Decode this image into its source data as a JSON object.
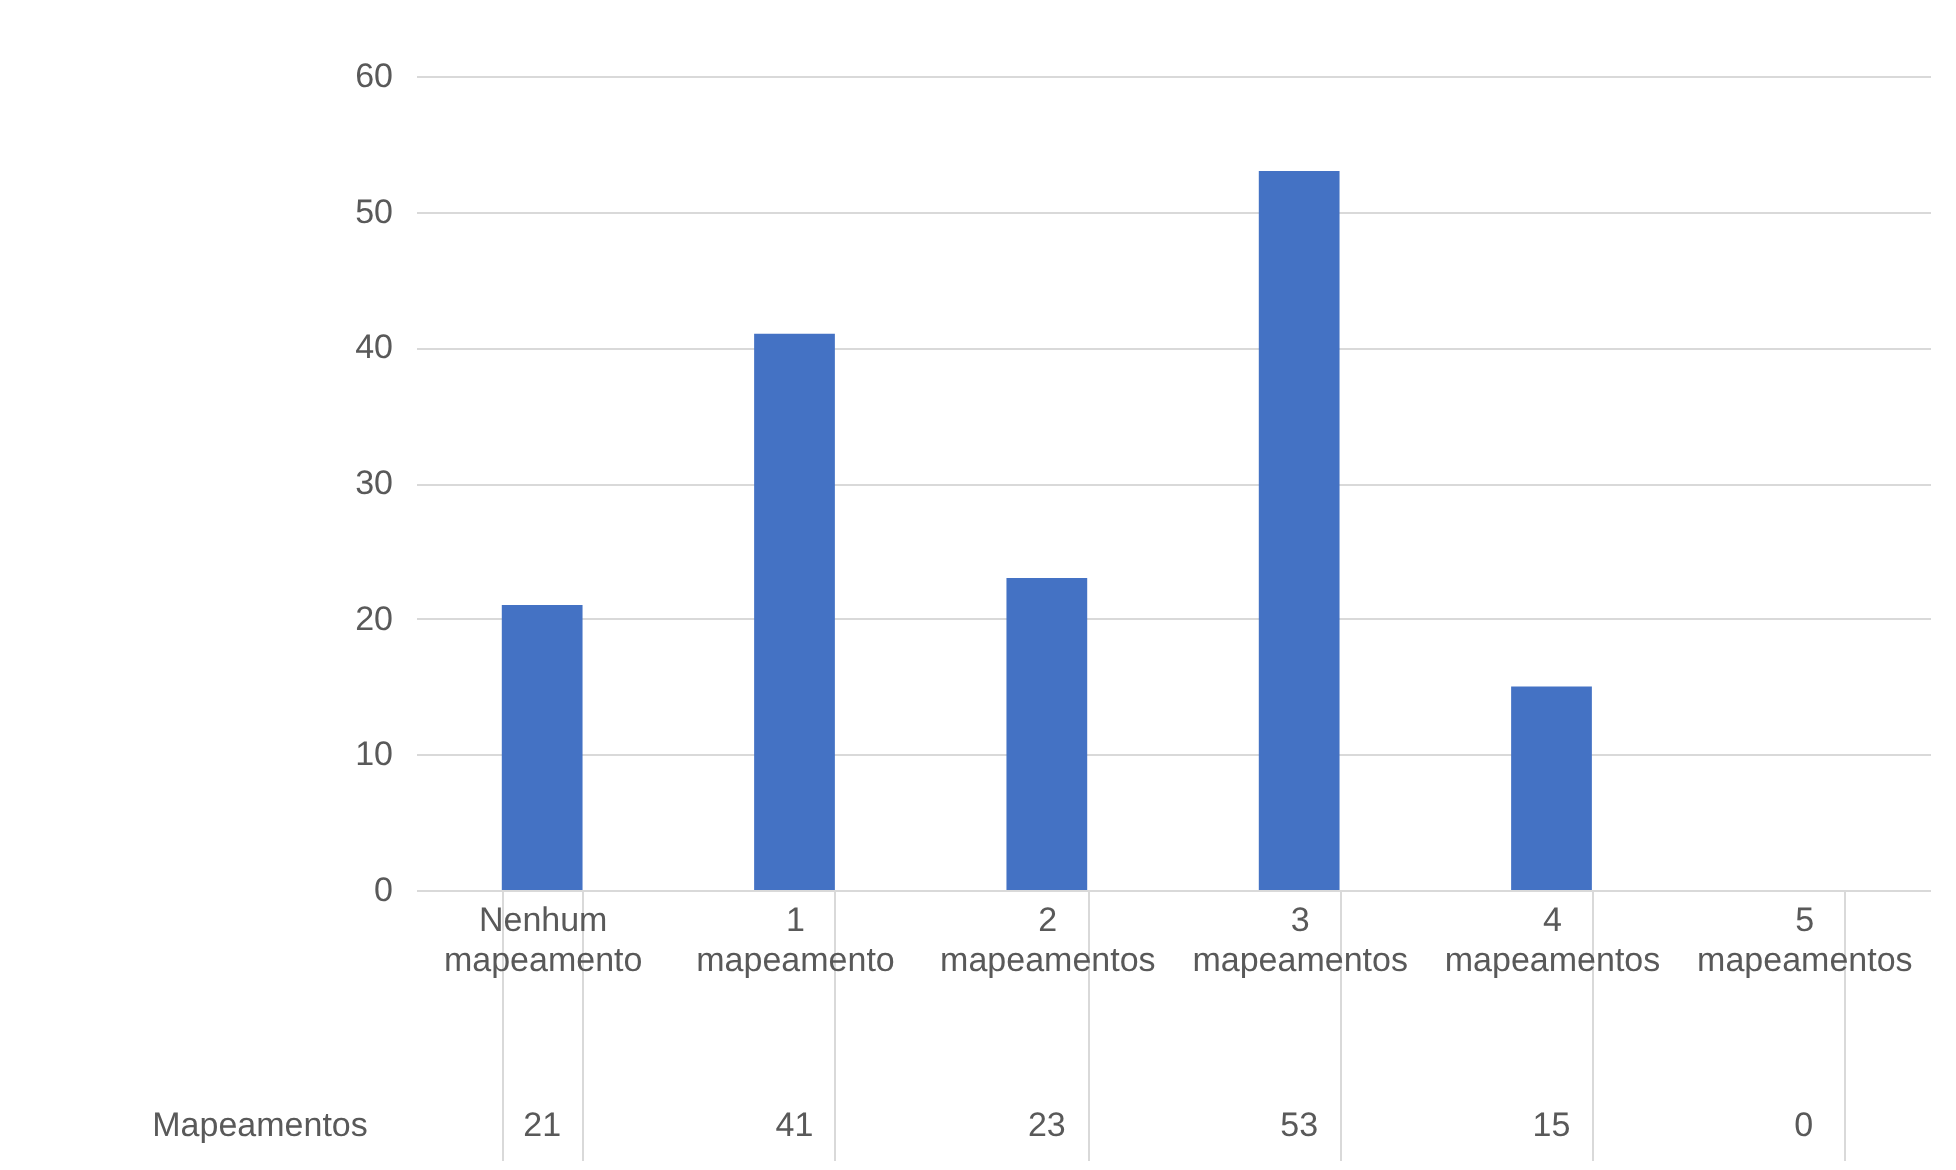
{
  "chart_data": {
    "type": "bar",
    "categories": [
      "Nenhum mapeamento",
      "1 mapeamento",
      "2 mapeamentos",
      "3 mapeamentos",
      "4 mapeamentos",
      "5 mapeamentos"
    ],
    "series": [
      {
        "name": "Mapeamentos",
        "color": "#4472c4",
        "values": [
          21,
          41,
          23,
          53,
          15,
          0
        ]
      }
    ],
    "ylim": [
      0,
      60
    ],
    "yticks": [
      0,
      10,
      20,
      30,
      40,
      50,
      60
    ],
    "grid": "y",
    "data_labels": true
  }
}
